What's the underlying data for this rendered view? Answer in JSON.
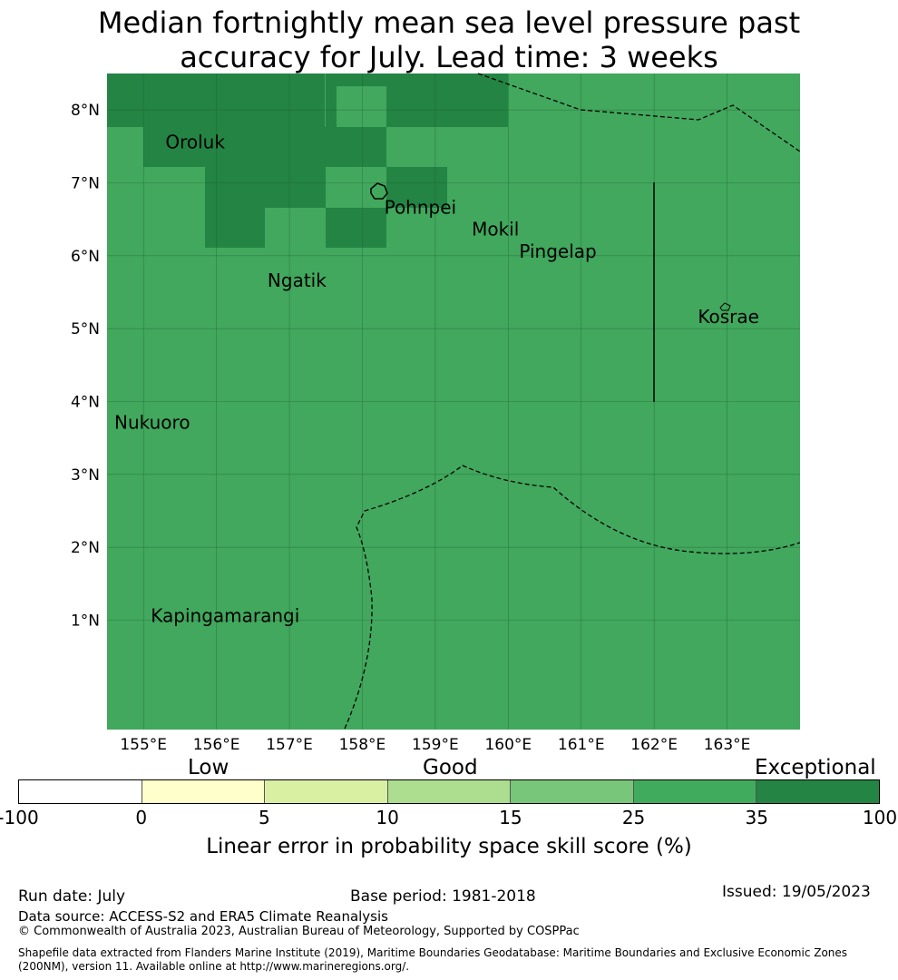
{
  "title": {
    "line1": "Median fortnightly mean sea level pressure past",
    "line2": "accuracy for July. Lead time: 3 weeks"
  },
  "map": {
    "lon_range": [
      154.5,
      164.0
    ],
    "lat_range": [
      -0.5,
      8.5
    ],
    "lon_ticks": [
      "155°E",
      "156°E",
      "157°E",
      "158°E",
      "159°E",
      "160°E",
      "161°E",
      "162°E",
      "163°E"
    ],
    "lat_ticks": [
      "1°N",
      "2°N",
      "3°N",
      "4°N",
      "5°N",
      "6°N",
      "7°N",
      "8°N"
    ],
    "base_color": "#41a85d",
    "dark_color": "#238443",
    "places": [
      {
        "name": "Oroluk",
        "lon": 155.3,
        "lat": 7.55
      },
      {
        "name": "Pohnpei",
        "lon": 158.3,
        "lat": 6.65
      },
      {
        "name": "Mokil",
        "lon": 159.5,
        "lat": 6.35
      },
      {
        "name": "Pingelap",
        "lon": 160.15,
        "lat": 6.05
      },
      {
        "name": "Ngatik",
        "lon": 156.7,
        "lat": 5.65
      },
      {
        "name": "Kosrae",
        "lon": 162.6,
        "lat": 5.15
      },
      {
        "name": "Nukuoro",
        "lon": 154.6,
        "lat": 3.7
      },
      {
        "name": "Kapingamarangi",
        "lon": 155.1,
        "lat": 1.05
      }
    ]
  },
  "colorbar": {
    "category_labels": {
      "low": "Low",
      "good": "Good",
      "exceptional": "Exceptional"
    },
    "ticks": [
      "-100",
      "0",
      "5",
      "10",
      "15",
      "25",
      "35",
      "100"
    ],
    "segment_colors": [
      "#ffffff",
      "#ffffcc",
      "#d9f0a3",
      "#addd8e",
      "#78c679",
      "#41ab5d",
      "#238443"
    ],
    "title": "Linear error in probability space skill score (%)"
  },
  "footer": {
    "run_date": "Run date: July",
    "base_period": "Base period: 1981-2018",
    "issued": "Issued: 19/05/2023",
    "data_source": "Data source: ACCESS-S2 and ERA5 Climate Reanalysis",
    "copyright": "© Commonwealth of Australia 2023, Australian Bureau of Meteorology, Supported by COSPPac",
    "shapefile_line1": "Shapefile data extracted from Flanders Marine Institute (2019), Maritime Boundaries Geodatabase: Maritime Boundaries and Exclusive Economic Zones",
    "shapefile_line2": "(200NM), version 11. Available online at http://www.marineregions.org/."
  }
}
